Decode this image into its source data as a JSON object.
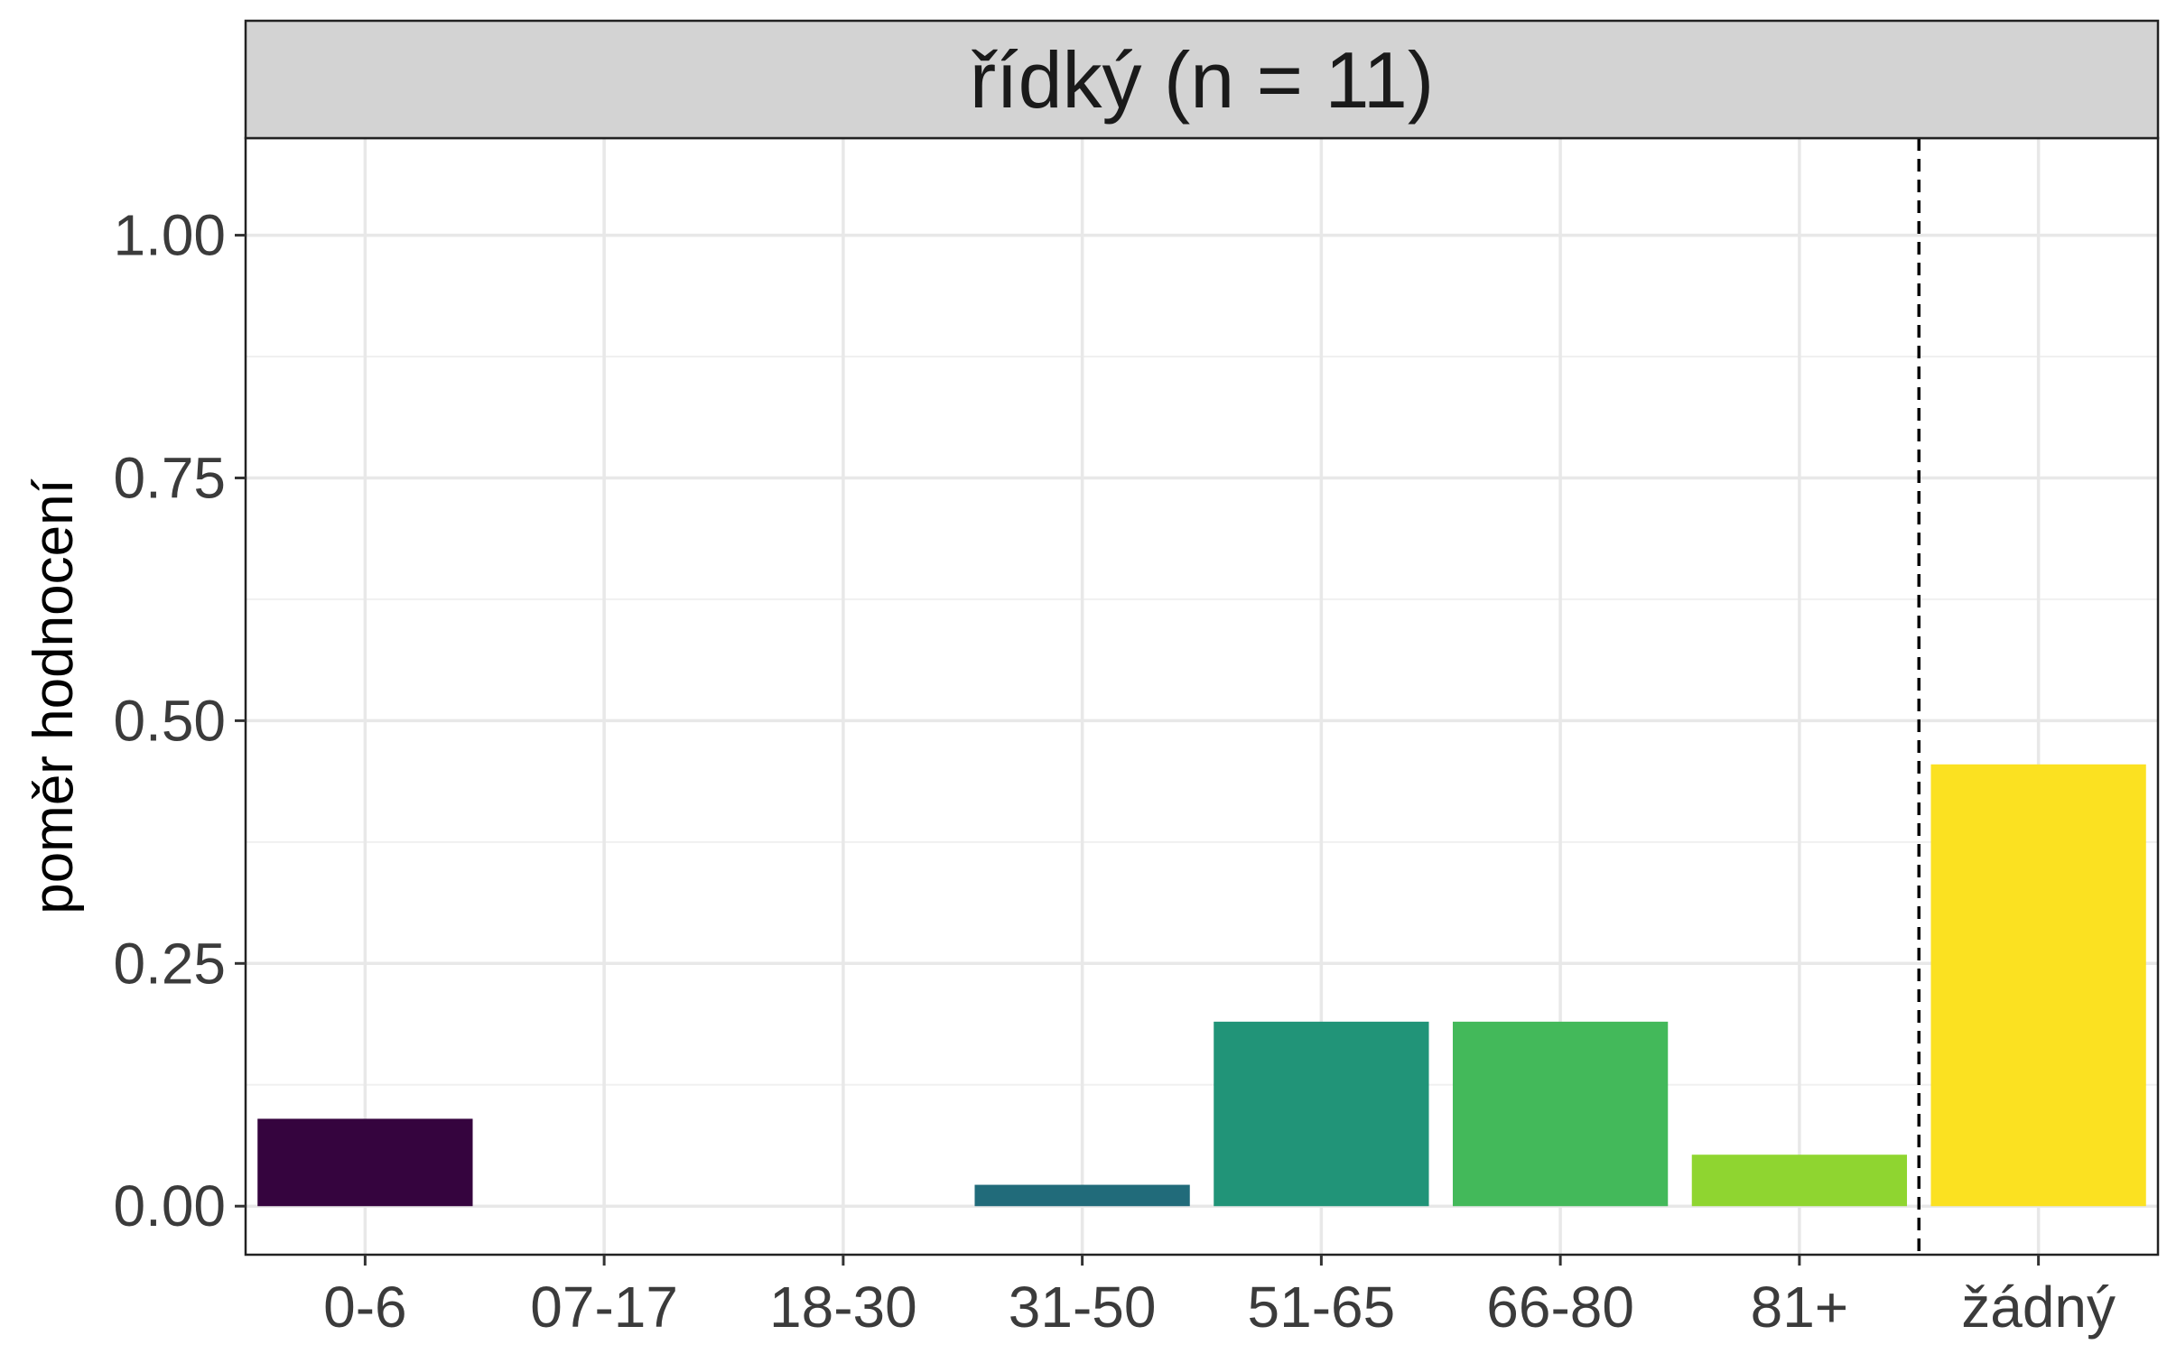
{
  "chart_data": {
    "type": "bar",
    "title": "řídký (n = 11)",
    "xlabel": "",
    "ylabel": "poměr hodnocení",
    "categories": [
      "0-6",
      "07-17",
      "18-30",
      "31-50",
      "51-65",
      "66-80",
      "81+",
      "žádný"
    ],
    "values": [
      0.09,
      0.0,
      0.0,
      0.022,
      0.19,
      0.19,
      0.053,
      0.455
    ],
    "colors": [
      "#35043e",
      "#ffffff",
      "#ffffff",
      "#216b7a",
      "#219478",
      "#43b95a",
      "#8fd530",
      "#fbe121"
    ],
    "ylim": [
      -0.05,
      1.1
    ],
    "yticks": [
      0.0,
      0.25,
      0.5,
      0.75,
      1.0
    ],
    "ytick_labels": [
      "0.00",
      "0.25",
      "0.50",
      "0.75",
      "1.00"
    ],
    "reference_line": {
      "between_categories": [
        "81+",
        "žádný"
      ],
      "style": "dashed"
    },
    "grid": true,
    "legend": "none"
  }
}
